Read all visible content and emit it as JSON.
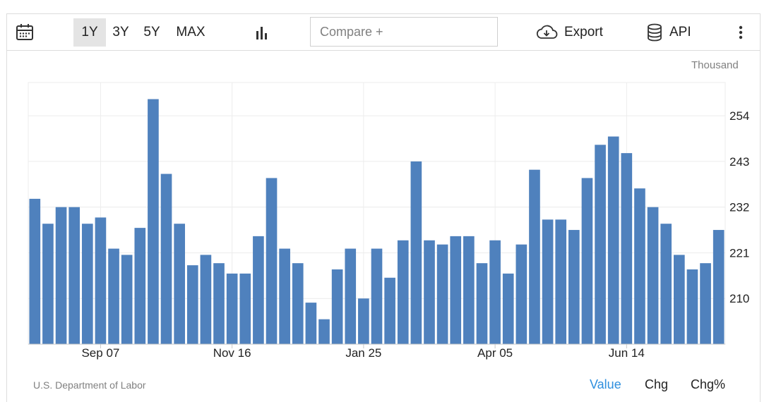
{
  "toolbar": {
    "ranges": [
      "1Y",
      "3Y",
      "5Y",
      "MAX"
    ],
    "active_range": "1Y",
    "compare_placeholder": "Compare +",
    "export_label": "Export",
    "api_label": "API",
    "icons": [
      "calendar-icon",
      "bar-chart-icon",
      "cloud-download-icon",
      "database-icon",
      "more-vertical-icon"
    ]
  },
  "unit_label": "Thousand",
  "source": "U.S. Department of Labor",
  "view_modes": {
    "value": "Value",
    "chg": "Chg",
    "chg_pct": "Chg%",
    "active": "Value"
  },
  "colors": {
    "bar": "#4f81bd",
    "active_mode": "#2f8fde",
    "grid": "#ececec"
  },
  "chart_data": {
    "type": "bar",
    "x_tick_labels": [
      "Sep 07",
      "Nov 16",
      "Jan 25",
      "Apr 05",
      "Jun 14"
    ],
    "y_tick_labels": [
      "210",
      "221",
      "232",
      "243",
      "254"
    ],
    "ylim": [
      199,
      262
    ],
    "grid": true,
    "values": [
      234,
      228,
      232,
      232,
      228,
      229.5,
      222,
      220.5,
      227,
      258,
      240,
      228,
      218,
      220.5,
      218.5,
      216,
      216,
      225,
      239,
      222,
      218.5,
      209,
      205,
      217,
      222,
      210,
      222,
      215,
      224,
      243,
      224,
      223,
      225,
      225,
      218.5,
      224,
      216,
      223,
      241,
      229,
      229,
      226.5,
      239,
      247,
      249,
      245,
      236.5,
      232,
      228,
      220.5,
      217,
      218.5,
      226.5
    ]
  }
}
